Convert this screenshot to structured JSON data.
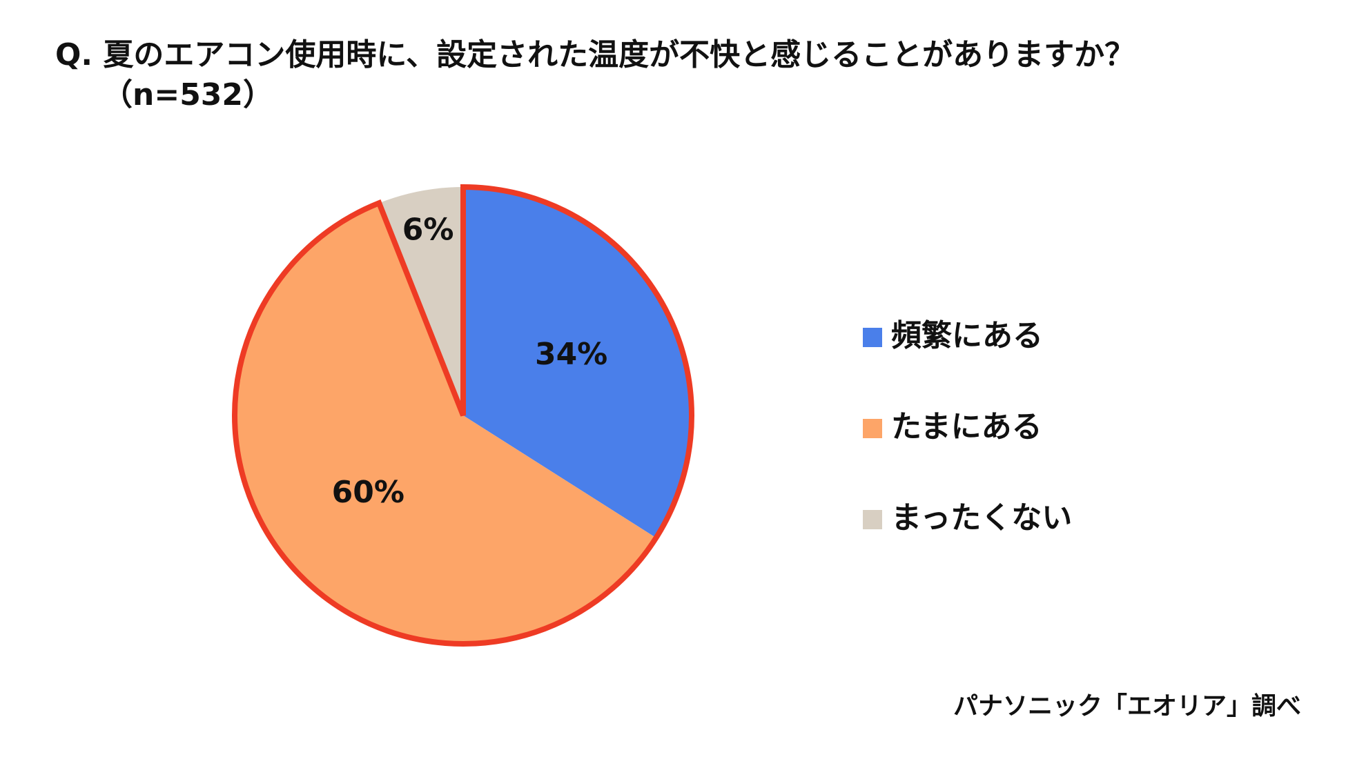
{
  "chart_data": {
    "type": "pie",
    "title": "Q. 夏のエアコン使用時に、設定された温度が不快と感じることがありますか？",
    "subtitle": "（n=532）",
    "categories": [
      "頻繁にある",
      "たまにある",
      "まったくない"
    ],
    "values": [
      34,
      60,
      6
    ],
    "value_labels": [
      "34%",
      "60%",
      "6%"
    ],
    "colors": [
      "#4a7fea",
      "#fda568",
      "#d8cfc2"
    ],
    "source": "パナソニック「エオリア」調べ"
  }
}
